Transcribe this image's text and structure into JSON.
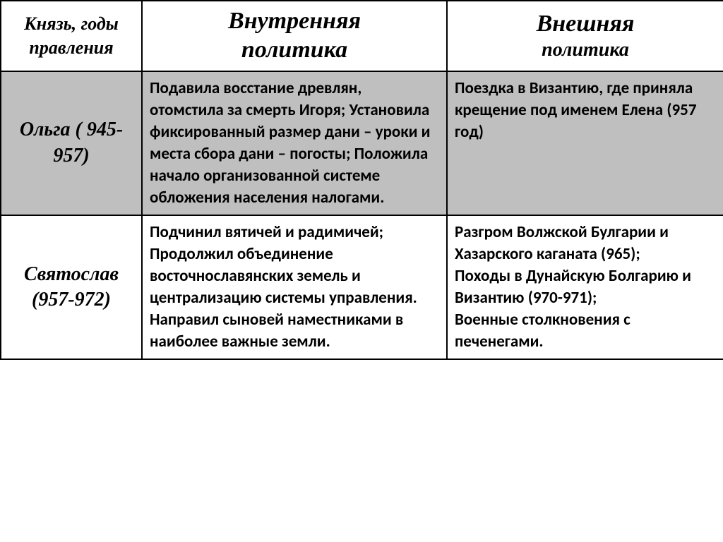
{
  "headers": {
    "prince": "Князь, годы правления",
    "inner_main": "Внутренняя",
    "inner_sub": "политика",
    "outer_main": "Внешняя",
    "outer_sub": "политика"
  },
  "rows": [
    {
      "prince": "Ольга ( 945-957)",
      "inner": "Подавила восстание древлян, отомстила за смерть Игоря; Установила фиксированный размер дани – уроки и места сбора дани – погосты; Положила начало организованной системе обложения населения налогами.",
      "outer": "Поездка в Византию, где приняла крещение под именем Елена (957 год)",
      "bg": "gray"
    },
    {
      "prince": "Святослав (957-972)",
      "inner": "Подчинил вятичей и радимичей;\nПродолжил объединение восточнославянских земель и централизацию  системы управления.\nНаправил сыновей наместниками в наиболее важные земли.",
      "outer": "Разгром Волжской Булгарии и Хазарского каганата (965);\nПоходы в Дунайскую Болгарию и Византию (970-971);\nВоенные столкновения с печенегами.",
      "bg": "white"
    }
  ],
  "colors": {
    "border": "#000000",
    "gray_row": "#bfbfbf",
    "white_row": "#ffffff",
    "text": "#000000"
  },
  "fonts": {
    "header_family": "Times New Roman",
    "body_family": "Calibri",
    "header_prince_size": 26,
    "header_main_size": 34,
    "header_sub_size": 28,
    "prince_name_size": 28,
    "body_size": 23
  }
}
